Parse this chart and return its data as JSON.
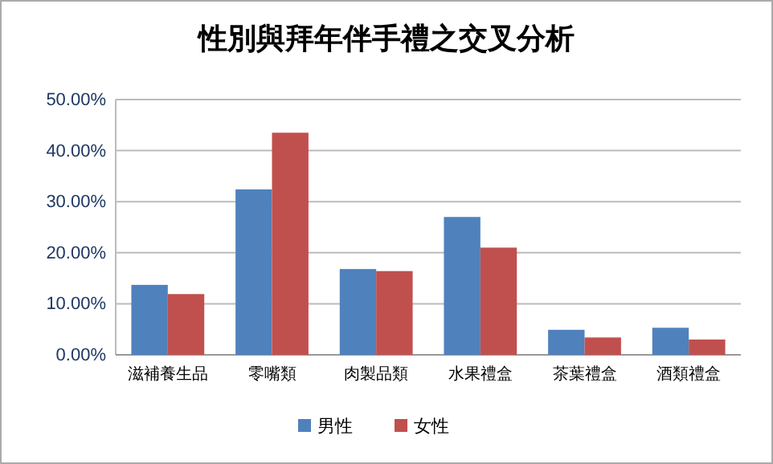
{
  "chart_data": {
    "type": "bar",
    "title": "性別與拜年伴手禮之交叉分析",
    "categories": [
      "滋補養生品",
      "零嘴類",
      "肉製品類",
      "水果禮盒",
      "茶葉禮盒",
      "酒類禮盒"
    ],
    "series": [
      {
        "name": "男性",
        "color": "#4f81bd",
        "values": [
          13.7,
          32.4,
          16.8,
          27,
          4.9,
          5.3
        ]
      },
      {
        "name": "女性",
        "color": "#c0504d",
        "values": [
          11.9,
          43.5,
          16.4,
          21,
          3.4,
          3
        ]
      }
    ],
    "ylim": [
      0,
      50
    ],
    "yticks": [
      {
        "value": 0,
        "label": "0.00%"
      },
      {
        "value": 10,
        "label": "10.00%"
      },
      {
        "value": 20,
        "label": "20.00%"
      },
      {
        "value": 30,
        "label": "30.00%"
      },
      {
        "value": 40,
        "label": "40.00%"
      },
      {
        "value": 50,
        "label": "50.00%"
      }
    ],
    "grid": "y",
    "legend": "bottom"
  }
}
